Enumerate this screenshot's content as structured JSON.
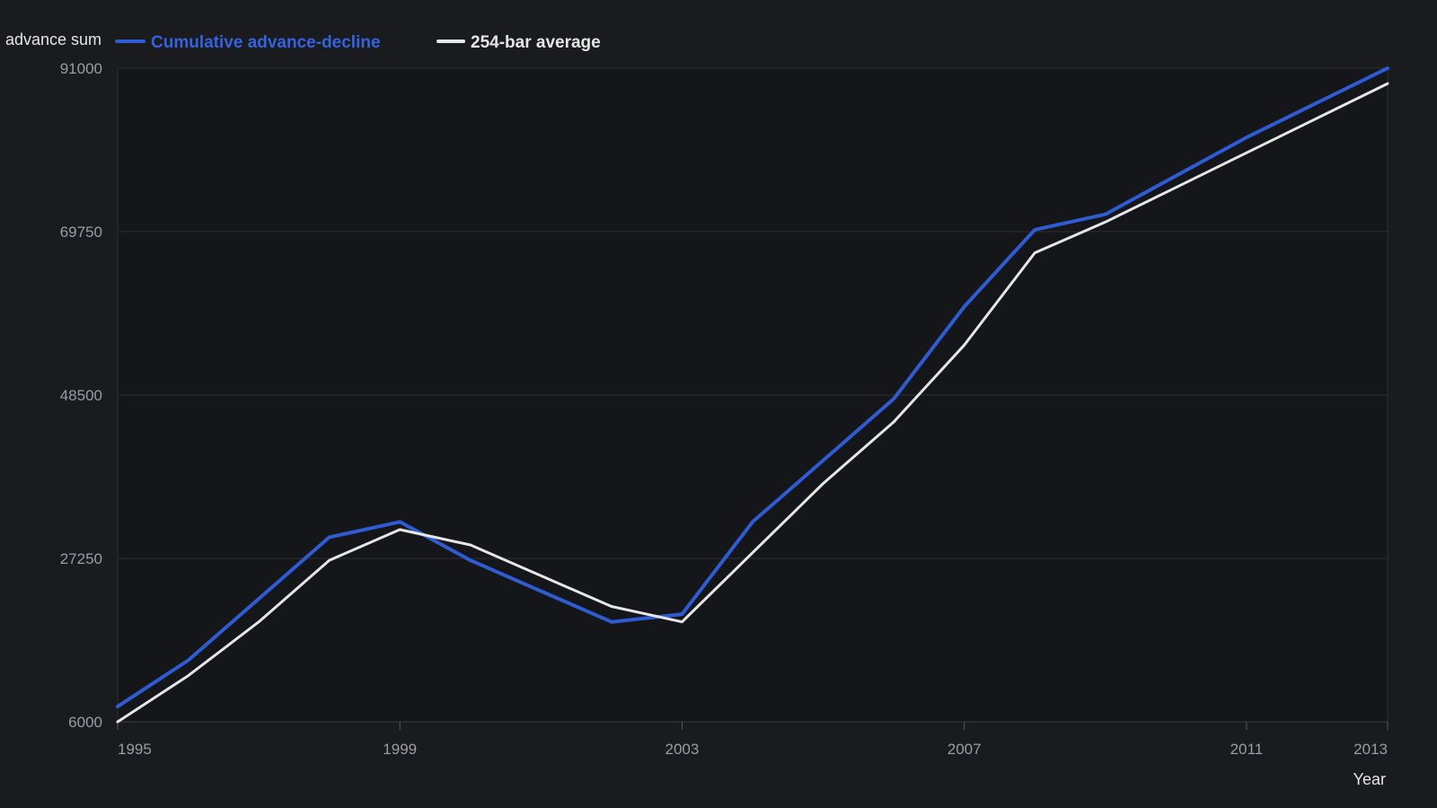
{
  "colors": {
    "background": "#1a1b1f",
    "plot_background": "#15161a",
    "grid": "#2c2d33",
    "axis_text": "#9a9ca3",
    "title_text": "#e4e5e8"
  },
  "chart_data": {
    "type": "line",
    "xlabel": "Year",
    "ylabel": "advance sum",
    "ylim": [
      6000,
      91000
    ],
    "yticks": [
      6000,
      27250,
      48500,
      69750,
      91000
    ],
    "xlim": [
      1995,
      2013
    ],
    "xticks": [
      1995,
      1999,
      2003,
      2007,
      2011,
      2013
    ],
    "grid": true,
    "legend_position": "top-left",
    "series": [
      {
        "name": "Cumulative advance-decline",
        "color": "#2f5bd3",
        "x": [
          1995,
          1996,
          1997,
          1998,
          1999,
          2000,
          2001,
          2002,
          2003,
          2004,
          2005,
          2006,
          2007,
          2008,
          2009,
          2010,
          2011,
          2012,
          2013
        ],
        "y": [
          8000,
          14000,
          22000,
          30000,
          32000,
          27000,
          23000,
          19000,
          20000,
          32000,
          40000,
          48000,
          60000,
          70000,
          72000,
          77000,
          82000,
          86500,
          91000
        ]
      },
      {
        "name": "254-bar average",
        "color": "#e6e6e6",
        "x": [
          1995,
          1996,
          1997,
          1998,
          1999,
          2000,
          2001,
          2002,
          2003,
          2004,
          2005,
          2006,
          2007,
          2008,
          2009,
          2010,
          2011,
          2012,
          2013
        ],
        "y": [
          6000,
          12000,
          19000,
          27000,
          31000,
          29000,
          25000,
          21000,
          19000,
          28000,
          37000,
          45000,
          55000,
          67000,
          71000,
          75500,
          80000,
          84500,
          89000
        ]
      }
    ]
  }
}
